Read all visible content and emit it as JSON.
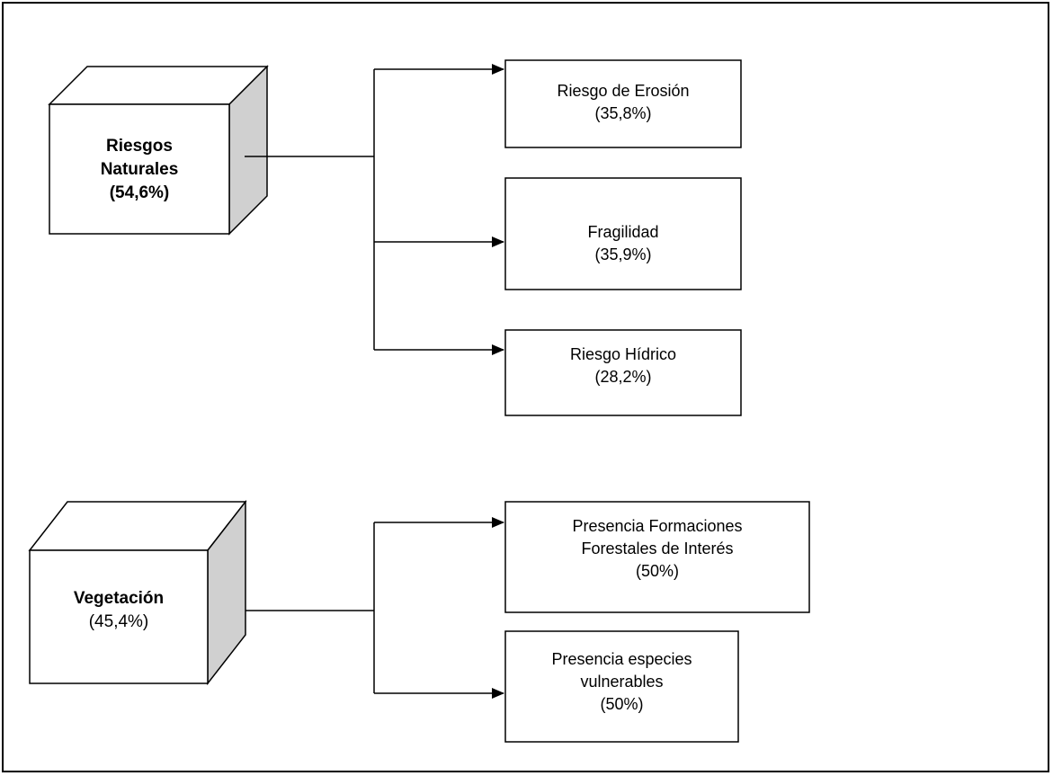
{
  "groups": [
    {
      "name": "Riesgos Naturales",
      "name_lines": [
        "Riesgos",
        "Naturales"
      ],
      "percent": "(54,6%)",
      "children": [
        {
          "lines": [
            "Riesgo de Erosión"
          ],
          "percent": "(35,8%)"
        },
        {
          "lines": [
            "Fragilidad"
          ],
          "percent": "(35,9%)"
        },
        {
          "lines": [
            "Riesgo Hídrico"
          ],
          "percent": "(28,2%)"
        }
      ]
    },
    {
      "name": "Vegetación",
      "name_lines": [
        "Vegetación"
      ],
      "percent": "(45,4%)",
      "children": [
        {
          "lines": [
            "Presencia Formaciones",
            "Forestales de Interés"
          ],
          "percent": "(50%)"
        },
        {
          "lines": [
            "Presencia especies",
            "vulnerables"
          ],
          "percent": "(50%)"
        }
      ]
    }
  ],
  "colors": {
    "cube_side": "#d0d0d0",
    "line": "#000000"
  }
}
